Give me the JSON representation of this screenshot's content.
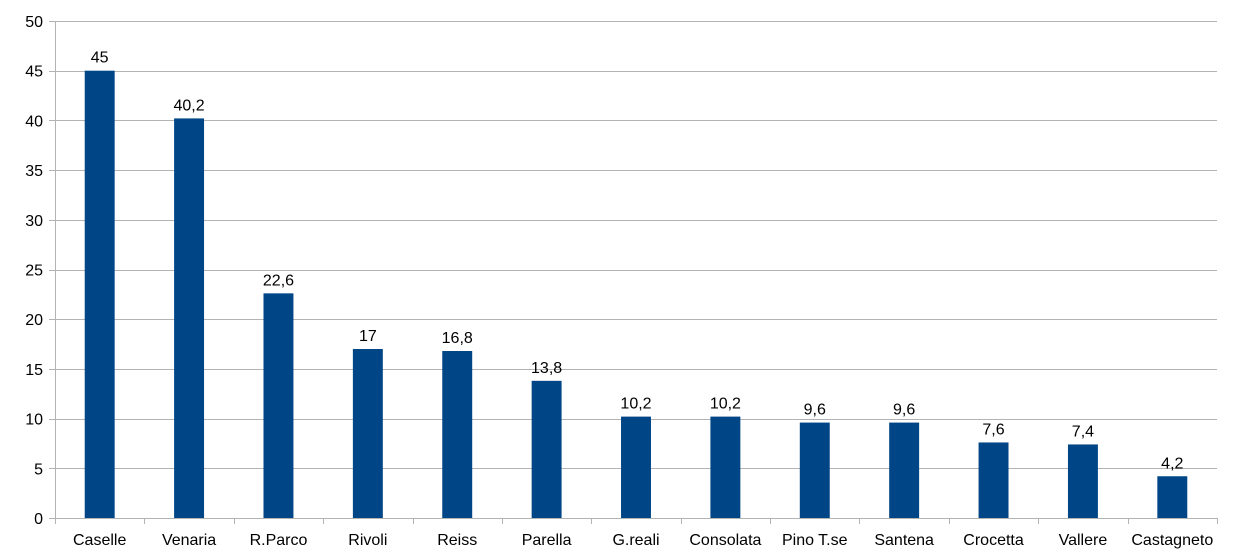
{
  "chart_data": {
    "type": "bar",
    "title": "",
    "xlabel": "",
    "ylabel": "",
    "categories": [
      "Caselle",
      "Venaria",
      "R.Parco",
      "Rivoli",
      "Reiss",
      "Parella",
      "G.reali",
      "Consolata",
      "Pino T.se",
      "Santena",
      "Crocetta",
      "Vallere",
      "Castagneto"
    ],
    "values": [
      45,
      40.2,
      22.6,
      17,
      16.8,
      13.8,
      10.2,
      10.2,
      9.6,
      9.6,
      7.6,
      7.4,
      4.2
    ],
    "data_labels": [
      "45",
      "40,2",
      "22,6",
      "17",
      "16,8",
      "13,8",
      "10,2",
      "10,2",
      "9,6",
      "9,6",
      "7,6",
      "7,4",
      "4,2"
    ],
    "ylim": [
      0,
      50
    ],
    "yticks": [
      0,
      5,
      10,
      15,
      20,
      25,
      30,
      35,
      40,
      45,
      50
    ],
    "grid": true,
    "legend": "none",
    "bar_color": "#004586"
  }
}
